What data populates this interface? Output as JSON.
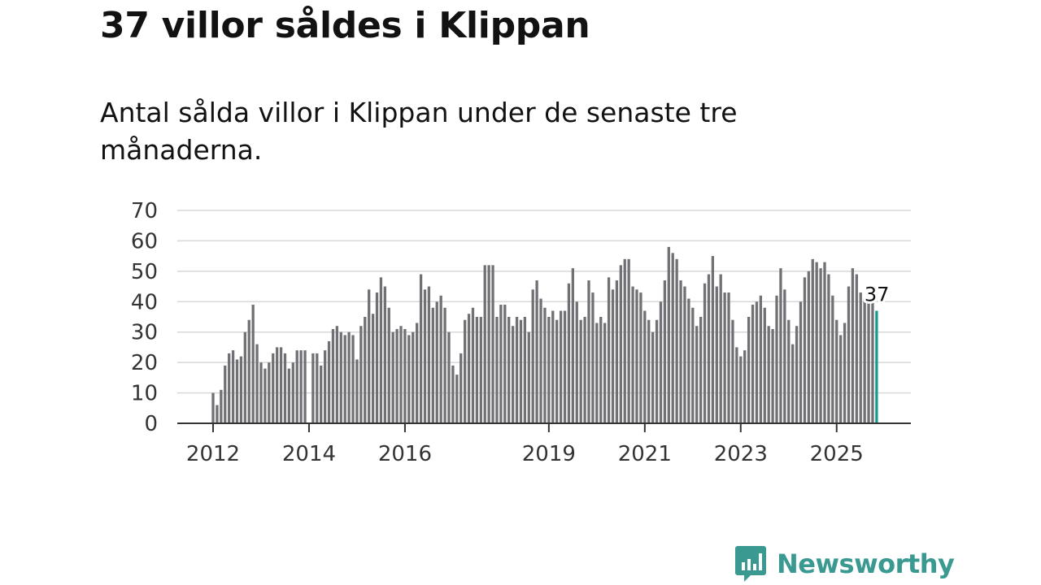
{
  "header": {
    "title": "37 villor såldes i Klippan",
    "subtitle": "Antal sålda villor i Klippan under de senaste tre månaderna."
  },
  "brand": {
    "name": "Newsworthy",
    "color": "#3a9a91",
    "icon": "bar-chart-speech-bubble-icon"
  },
  "colors": {
    "bar": "#707075",
    "highlight": "#1a9a8f",
    "grid": "#d8d8d8",
    "axis": "#333333"
  },
  "chart_data": {
    "type": "bar",
    "title": "37 villor såldes i Klippan",
    "subtitle": "Antal sålda villor i Klippan under de senaste tre månaderna.",
    "xlabel": "",
    "ylabel": "",
    "ylim": [
      0,
      70
    ],
    "yticks": [
      0,
      10,
      20,
      30,
      40,
      50,
      60,
      70
    ],
    "grid": true,
    "x_start": {
      "year": 2012,
      "month": 1
    },
    "xticks": [
      {
        "label": "2012",
        "index": 0
      },
      {
        "label": "2014",
        "index": 24
      },
      {
        "label": "2016",
        "index": 48
      },
      {
        "label": "2019",
        "index": 84
      },
      {
        "label": "2021",
        "index": 108
      },
      {
        "label": "2023",
        "index": 132
      },
      {
        "label": "2025",
        "index": 156
      }
    ],
    "values": [
      10,
      6,
      11,
      19,
      23,
      24,
      21,
      22,
      30,
      34,
      39,
      26,
      20,
      18,
      20,
      23,
      25,
      25,
      23,
      18,
      20,
      24,
      24,
      24,
      null,
      23,
      23,
      19,
      24,
      27,
      31,
      32,
      30,
      29,
      30,
      29,
      21,
      32,
      35,
      44,
      36,
      43,
      48,
      45,
      38,
      30,
      31,
      32,
      31,
      29,
      30,
      33,
      49,
      44,
      45,
      38,
      40,
      42,
      38,
      30,
      19,
      16,
      23,
      34,
      36,
      38,
      35,
      35,
      52,
      52,
      52,
      35,
      39,
      39,
      35,
      32,
      35,
      34,
      35,
      30,
      44,
      47,
      41,
      38,
      35,
      37,
      34,
      37,
      37,
      46,
      51,
      40,
      34,
      35,
      47,
      43,
      33,
      35,
      33,
      48,
      44,
      47,
      52,
      54,
      54,
      45,
      44,
      43,
      37,
      34,
      30,
      34,
      40,
      47,
      58,
      56,
      54,
      47,
      45,
      41,
      38,
      32,
      35,
      46,
      49,
      55,
      45,
      49,
      43,
      43,
      34,
      25,
      22,
      24,
      35,
      39,
      40,
      42,
      38,
      32,
      31,
      42,
      51,
      44,
      34,
      26,
      32,
      40,
      48,
      50,
      54,
      53,
      51,
      53,
      49,
      42,
      34,
      29,
      33,
      45,
      51,
      49,
      43,
      41,
      41,
      40,
      37
    ],
    "highlight_last": true,
    "last_value_label": "37"
  }
}
